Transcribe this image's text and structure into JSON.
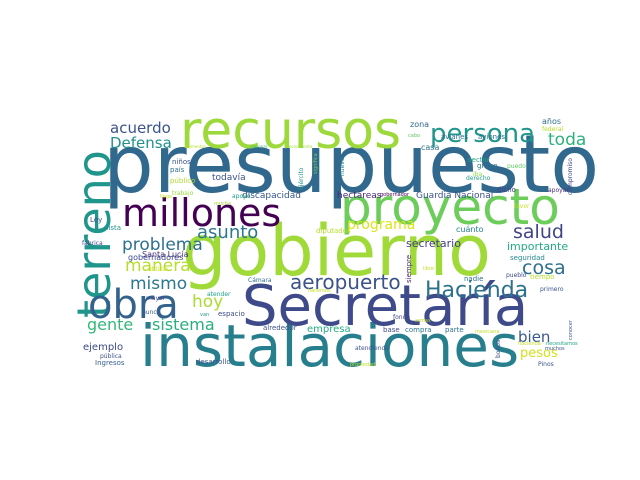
{
  "words": [
    {
      "text": "presupuesto",
      "color": "#31688e"
    },
    {
      "text": "gobierno",
      "color": "#a0da39"
    },
    {
      "text": "instalaciones",
      "color": "#277f8e"
    },
    {
      "text": "Secretaría",
      "color": "#3e4a89"
    },
    {
      "text": "recursos",
      "color": "#9dd93b"
    },
    {
      "text": "proyecto",
      "color": "#6ccd5a"
    },
    {
      "text": "terreno",
      "color": "#1f958b"
    },
    {
      "text": "millones",
      "color": "#440154"
    },
    {
      "text": "obra",
      "color": "#33638d"
    },
    {
      "text": "persona",
      "color": "#1f968b"
    },
    {
      "text": "aeropuerto",
      "color": "#3b528b"
    },
    {
      "text": "Hacienda",
      "color": "#2c728e"
    },
    {
      "text": "salud",
      "color": "#414487"
    },
    {
      "text": "cosa",
      "color": "#2e6e8e"
    },
    {
      "text": "asunto",
      "color": "#2a788e"
    },
    {
      "text": "problema",
      "color": "#2d708e"
    },
    {
      "text": "manera",
      "color": "#b5de2b"
    },
    {
      "text": "mismo",
      "color": "#2a788e"
    },
    {
      "text": "hoy",
      "color": "#aadc32"
    },
    {
      "text": "gente",
      "color": "#35b779"
    },
    {
      "text": "sistema",
      "color": "#29af7f"
    },
    {
      "text": "programa",
      "color": "#dce319"
    },
    {
      "text": "toda",
      "color": "#2db27d"
    },
    {
      "text": "acuerdo",
      "color": "#3b528b"
    },
    {
      "text": "Defensa",
      "color": "#21918c"
    },
    {
      "text": "bien",
      "color": "#38598c"
    },
    {
      "text": "pesos",
      "color": "#d2e21b"
    },
    {
      "text": "importante",
      "color": "#23a983"
    },
    {
      "text": "secretario",
      "color": "#433e85"
    },
    {
      "text": "empresa",
      "color": "#25ac82"
    },
    {
      "text": "ejemplo",
      "color": "#3e4989"
    },
    {
      "text": "discapacidad",
      "color": "#39568c"
    },
    {
      "text": "todavía",
      "color": "#3a548c"
    },
    {
      "text": "hectáreas",
      "color": "#482878"
    },
    {
      "text": "Guardia Nacional",
      "color": "#3b528b"
    },
    {
      "text": "gobernadores",
      "color": "#3e4a89"
    },
    {
      "text": "Santa Lucía",
      "color": "#46337e"
    },
    {
      "text": "diputados",
      "color": "#b8de29"
    },
    {
      "text": "cuánto",
      "color": "#27808e"
    },
    {
      "text": "seguridad",
      "color": "#23888e"
    },
    {
      "text": "zona",
      "color": "#31688e"
    },
    {
      "text": "avion",
      "color": "#2e6d8e"
    },
    {
      "text": "avión",
      "color": "#2e6d8e"
    },
    {
      "text": "avianes",
      "color": "#2e6d8e"
    },
    {
      "text": "aviones",
      "color": "#2e6d8e"
    },
    {
      "text": "oficina",
      "color": "#37598c"
    },
    {
      "text": "años",
      "color": "#2e6d8e"
    },
    {
      "text": "federal",
      "color": "#b8de29"
    },
    {
      "text": "casa",
      "color": "#2c718e"
    },
    {
      "text": "sector",
      "color": "#21a685"
    },
    {
      "text": "iba",
      "color": "#8ed645"
    },
    {
      "text": "grupo",
      "color": "#2a768e"
    },
    {
      "text": "puedo",
      "color": "#5ec962"
    },
    {
      "text": "compromiso",
      "color": "#3e4989"
    },
    {
      "text": "niños",
      "color": "#3b528b"
    },
    {
      "text": "país",
      "color": "#2d708e"
    },
    {
      "text": "trabajo",
      "color": "#9bd93c"
    },
    {
      "text": "público",
      "color": "#b2dd2d"
    },
    {
      "text": "utilizar",
      "color": "#cde11d"
    },
    {
      "text": "nuevo",
      "color": "#25848e"
    },
    {
      "text": "Ejército",
      "color": "#20928c"
    },
    {
      "text": "significa",
      "color": "#74d055"
    },
    {
      "text": "dicho",
      "color": "#414487"
    },
    {
      "text": "favor",
      "color": "#c2df23"
    },
    {
      "text": "tiempo",
      "color": "#b5de2b"
    },
    {
      "text": "apoyar",
      "color": "#46307e"
    },
    {
      "text": "apoyo",
      "color": "#1fa187"
    },
    {
      "text": "gobernador",
      "color": "#440154"
    },
    {
      "text": "Ley",
      "color": "#3b528b"
    },
    {
      "text": "pista",
      "color": "#21918c"
    },
    {
      "text": "fábrica",
      "color": "#3f4788"
    },
    {
      "text": "mayor",
      "color": "#404688"
    },
    {
      "text": "nunca",
      "color": "#38598c"
    },
    {
      "text": "Ingresos",
      "color": "#355f8d"
    },
    {
      "text": "desarrollo",
      "color": "#3b528b"
    },
    {
      "text": "atender",
      "color": "#1fa088"
    },
    {
      "text": "Cámara",
      "color": "#2d708e"
    },
    {
      "text": "espacio",
      "color": "#3e4a89"
    },
    {
      "text": "alrededor",
      "color": "#3b528b"
    },
    {
      "text": "atendiendo",
      "color": "#3b528b"
    },
    {
      "text": "base",
      "color": "#3e4a89"
    },
    {
      "text": "fondo",
      "color": "#3e4a89"
    },
    {
      "text": "compra",
      "color": "#2a788e"
    },
    {
      "text": "parte",
      "color": "#2c718e"
    },
    {
      "text": "siempre",
      "color": "#482475"
    },
    {
      "text": "bonos",
      "color": "#3b528b"
    },
    {
      "text": "nadie",
      "color": "#2c718e"
    },
    {
      "text": "pueblo",
      "color": "#3e4a89"
    },
    {
      "text": "primero",
      "color": "#3b528b"
    },
    {
      "text": "conocer",
      "color": "#3b528b"
    },
    {
      "text": "muchos",
      "color": "#3b528b"
    },
    {
      "text": "Pinos",
      "color": "#3b528b"
    },
    {
      "text": "pública",
      "color": "#3b528b"
    },
    {
      "text": "armas",
      "color": "#c2df23"
    },
    {
      "text": "propiedad",
      "color": "#c2df23"
    },
    {
      "text": "libre",
      "color": "#c2df23"
    },
    {
      "text": "van",
      "color": "#1fa187"
    },
    {
      "text": "derecho",
      "color": "#1f9f88"
    },
    {
      "text": "cabo",
      "color": "#5ec962"
    },
    {
      "text": "necesitamos",
      "color": "#20a386"
    },
    {
      "text": "elementos",
      "color": "#b8de29"
    },
    {
      "text": "nacional",
      "color": "#35b779"
    },
    {
      "text": "precisamente",
      "color": "#a0da39"
    },
    {
      "text": "hacemos",
      "color": "#c2df23"
    },
    {
      "text": "hacienda",
      "color": "#c2df23"
    },
    {
      "text": "mexicana",
      "color": "#c2df23"
    },
    {
      "text": "llego",
      "color": "#c2df23"
    },
    {
      "text": "mucha",
      "color": "#a0da39"
    }
  ]
}
